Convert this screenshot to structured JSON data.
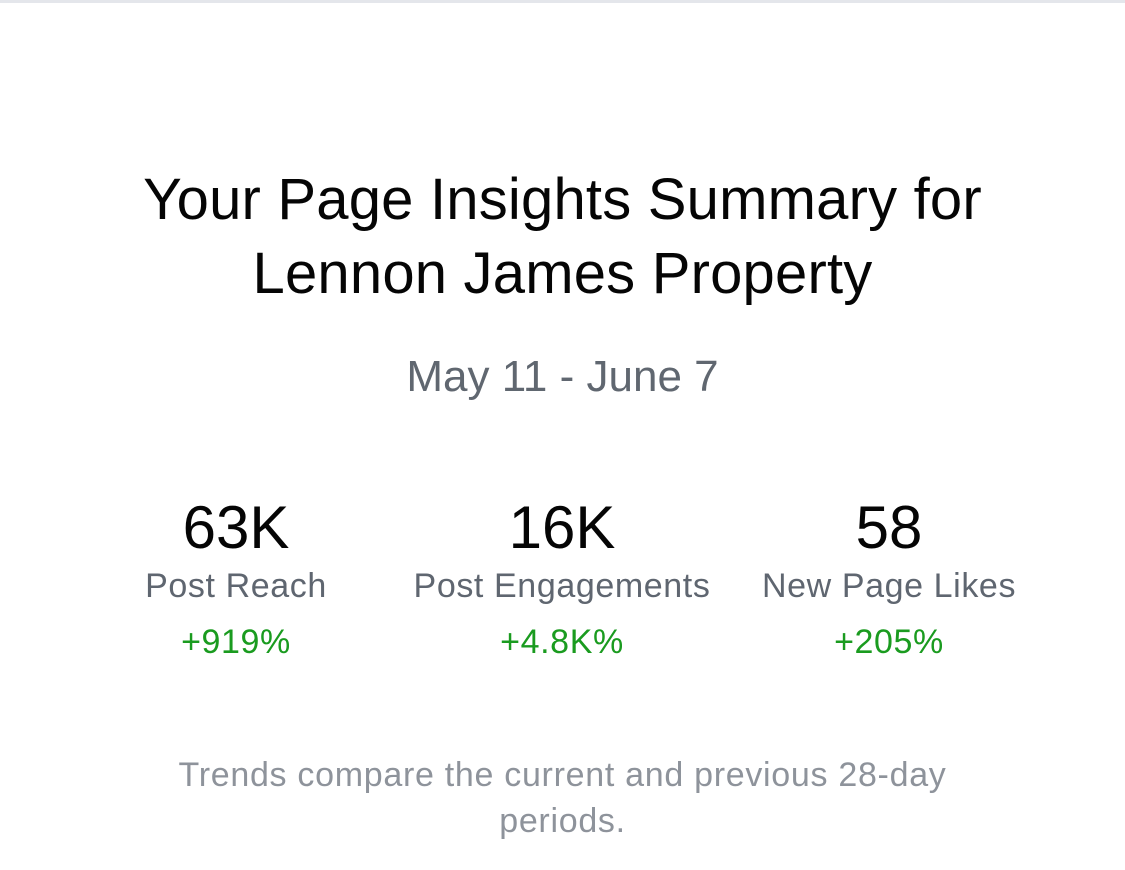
{
  "summary": {
    "title_line1": "Your Page Insights Summary for",
    "title_line2": "Lennon James Property",
    "date_range": "May 11 - June 7",
    "metrics": [
      {
        "value": "63K",
        "label": "Post Reach",
        "change": "+919%"
      },
      {
        "value": "16K",
        "label": "Post Engagements",
        "change": "+4.8K%"
      },
      {
        "value": "58",
        "label": "New Page Likes",
        "change": "+205%"
      }
    ],
    "footnote_line1": "Trends compare the current and previous 28-day",
    "footnote_line2": "periods."
  },
  "colors": {
    "title": "#050505",
    "date": "#606770",
    "label": "#5f6670",
    "positive_change": "#1a9b1f",
    "footnote": "#8e939b",
    "top_border": "#e4e6eb"
  }
}
